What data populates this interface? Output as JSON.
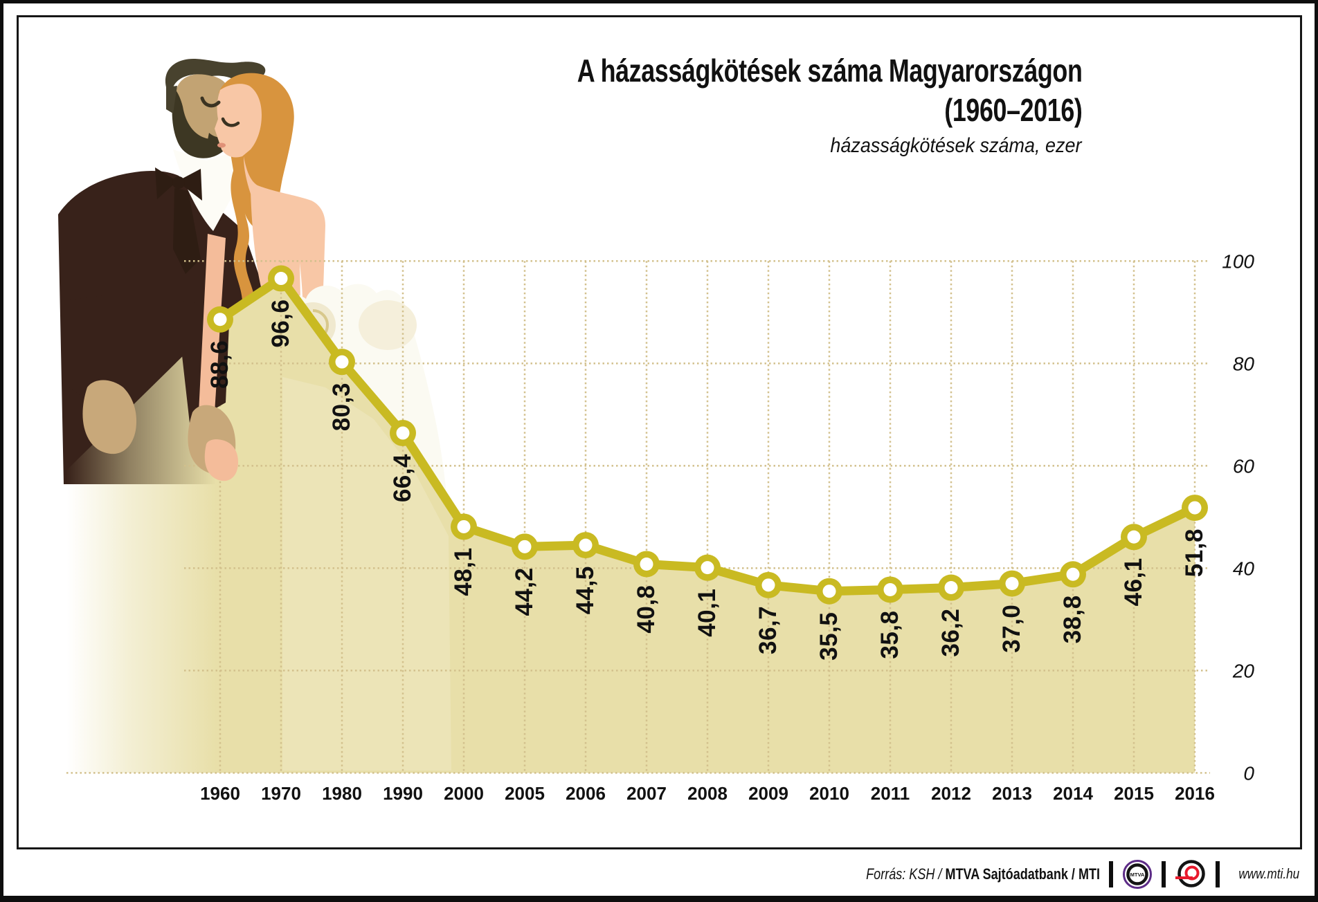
{
  "header": {
    "title_line1": "A házasságkötések száma Magyarországon",
    "title_line2": "(1960–2016)",
    "subtitle": "házasságkötések száma, ezer"
  },
  "chart_data": {
    "type": "area",
    "title": "A házasságkötések száma Magyarországon (1960–2016)",
    "unit_label": "házasságkötések száma, ezer",
    "categories": [
      "1960",
      "1970",
      "1980",
      "1990",
      "2000",
      "2005",
      "2006",
      "2007",
      "2008",
      "2009",
      "2010",
      "2011",
      "2012",
      "2013",
      "2014",
      "2015",
      "2016"
    ],
    "values": [
      88.6,
      96.6,
      80.3,
      66.4,
      48.1,
      44.2,
      44.5,
      40.8,
      40.1,
      36.7,
      35.5,
      35.8,
      36.2,
      37.0,
      38.8,
      46.1,
      51.8
    ],
    "value_labels": [
      "88,6",
      "96,6",
      "80,3",
      "66,4",
      "48,1",
      "44,2",
      "44,5",
      "40,8",
      "40,1",
      "36,7",
      "35,5",
      "35,8",
      "36,2",
      "37,0",
      "38,8",
      "46,1",
      "51,8"
    ],
    "y_ticks": [
      0,
      20,
      40,
      60,
      80,
      100
    ],
    "ylim": [
      0,
      100
    ],
    "grid": true,
    "legend": "none",
    "label_rotation": -90,
    "line_color": "#c9ba22",
    "fill_color": "#e8dfa9",
    "grid_color": "#d2c08c",
    "marker": "open-circle"
  },
  "footer": {
    "source_italic": "Forrás: KSH",
    "separator": "/",
    "source_bold1": "MTVA Sajtóadatbank",
    "source_bold2": "MTI",
    "website": "www.mti.hu",
    "logos": [
      {
        "name": "mtva-logo",
        "text": "MTVA"
      },
      {
        "name": "mti-logo",
        "text": ""
      }
    ]
  },
  "colors": {
    "accent_line": "#c9ba22",
    "area_fill": "#e8dfa9",
    "grid": "#d2c08c",
    "mtva_purple": "#5d2c87",
    "mti_red": "#e8192c",
    "ink": "#111111"
  }
}
